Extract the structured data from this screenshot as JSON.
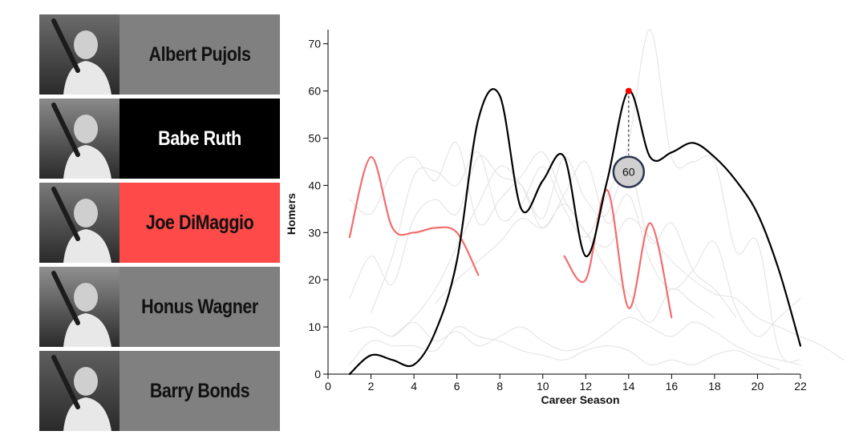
{
  "players": [
    {
      "name": "Albert Pujols",
      "bg": "#808080",
      "fg": "#111111"
    },
    {
      "name": "Babe Ruth",
      "bg": "#000000",
      "fg": "#ffffff"
    },
    {
      "name": "Joe DiMaggio",
      "bg": "#ff4a4a",
      "fg": "#111111"
    },
    {
      "name": "Honus Wagner",
      "bg": "#808080",
      "fg": "#111111"
    },
    {
      "name": "Barry Bonds",
      "bg": "#808080",
      "fg": "#111111"
    }
  ],
  "chart_data": {
    "type": "line",
    "xlabel": "Career Season",
    "ylabel": "Homers",
    "xlim": [
      0,
      22
    ],
    "ylim": [
      0,
      73
    ],
    "xticks": [
      0,
      2,
      4,
      6,
      8,
      10,
      12,
      14,
      16,
      18,
      20,
      22
    ],
    "yticks": [
      0,
      10,
      20,
      30,
      40,
      50,
      60,
      70
    ],
    "colors": {
      "highlight": "#000000",
      "secondary": "#f26d6d",
      "background": "#e6e6e6",
      "marker": "#ff0000"
    },
    "series": [
      {
        "role": "highlight",
        "x": [
          1,
          2,
          3,
          4,
          5,
          6,
          7,
          8,
          9,
          10,
          11,
          12,
          13,
          14,
          15,
          16,
          17,
          18,
          19,
          20,
          21,
          22
        ],
        "values": [
          0,
          4,
          3,
          2,
          9,
          24,
          54,
          59,
          35,
          41,
          46,
          25,
          41,
          60,
          46,
          47,
          49,
          46,
          41,
          34,
          22,
          6
        ]
      },
      {
        "role": "secondary",
        "x": [
          1,
          2,
          3,
          4,
          5,
          6,
          7
        ],
        "values": [
          29,
          46,
          31,
          30,
          31,
          30,
          21
        ]
      },
      {
        "role": "secondary",
        "x": [
          11,
          12,
          13,
          14,
          15,
          16
        ],
        "values": [
          25,
          20,
          39,
          14,
          32,
          12
        ]
      },
      {
        "role": "background",
        "x": [
          1,
          2,
          3,
          4,
          5,
          6,
          7,
          8,
          9,
          10,
          11,
          12,
          13,
          14,
          15,
          16,
          17,
          18
        ],
        "values": [
          37,
          34,
          43,
          46,
          41,
          49,
          32,
          37,
          42,
          47,
          37,
          30,
          22,
          17,
          11,
          18,
          15,
          12
        ]
      },
      {
        "role": "background",
        "x": [
          1,
          2,
          3,
          4,
          5,
          6,
          7,
          8,
          9,
          10,
          11,
          12,
          13,
          14,
          15,
          16,
          17,
          18,
          19,
          20,
          21,
          22
        ],
        "values": [
          16,
          25,
          19,
          33,
          37,
          34,
          46,
          42,
          40,
          33,
          46,
          37,
          34,
          49,
          73,
          46,
          45,
          45,
          26,
          28,
          5,
          3
        ]
      },
      {
        "role": "background",
        "x": [
          1,
          2,
          3,
          4,
          5,
          6,
          7,
          8,
          9,
          10,
          11,
          12,
          13,
          14,
          15,
          16,
          17,
          18,
          19,
          20,
          21
        ],
        "values": [
          2,
          7,
          6,
          6,
          5,
          10,
          8,
          7,
          5,
          4,
          3,
          5,
          6,
          5,
          2,
          3,
          2,
          4,
          5,
          3,
          1
        ]
      },
      {
        "role": "background",
        "x": [
          2,
          3,
          4,
          5,
          6,
          7,
          8,
          9,
          10,
          11,
          12,
          13,
          14,
          15,
          16,
          17,
          18,
          19
        ],
        "values": [
          13,
          25,
          42,
          43,
          40,
          47,
          33,
          36,
          44,
          35,
          29,
          38,
          44,
          28,
          32,
          22,
          18,
          12
        ]
      },
      {
        "role": "background",
        "x": [
          3,
          4,
          5,
          6,
          7,
          8,
          9,
          10,
          11,
          12,
          13,
          14,
          15,
          16,
          17,
          18,
          19,
          20,
          21,
          22
        ],
        "values": [
          8,
          12,
          18,
          27,
          36,
          44,
          40,
          31,
          38,
          45,
          32,
          38,
          24,
          18,
          22,
          28,
          14,
          8,
          12,
          16
        ]
      },
      {
        "role": "background",
        "x": [
          1,
          2,
          3,
          4,
          5,
          6,
          7,
          8,
          9,
          10,
          11,
          12,
          13,
          14,
          15,
          16,
          17,
          18,
          19,
          20,
          21,
          22
        ],
        "values": [
          9,
          10,
          8,
          11,
          7,
          9,
          6,
          8,
          10,
          7,
          5,
          6,
          9,
          12,
          10,
          8,
          11,
          9,
          6,
          4,
          3,
          2
        ]
      },
      {
        "role": "background",
        "x": [
          5,
          6,
          7,
          8,
          9,
          10,
          11,
          12,
          13,
          14,
          15,
          16,
          17,
          18,
          19,
          20,
          21,
          22,
          23,
          24
        ],
        "values": [
          15,
          20,
          24,
          28,
          33,
          31,
          36,
          30,
          27,
          33,
          29,
          24,
          20,
          17,
          16,
          12,
          10,
          8,
          6,
          3
        ]
      }
    ],
    "highlight_point": {
      "x": 14,
      "y": 60,
      "label": "60"
    }
  }
}
